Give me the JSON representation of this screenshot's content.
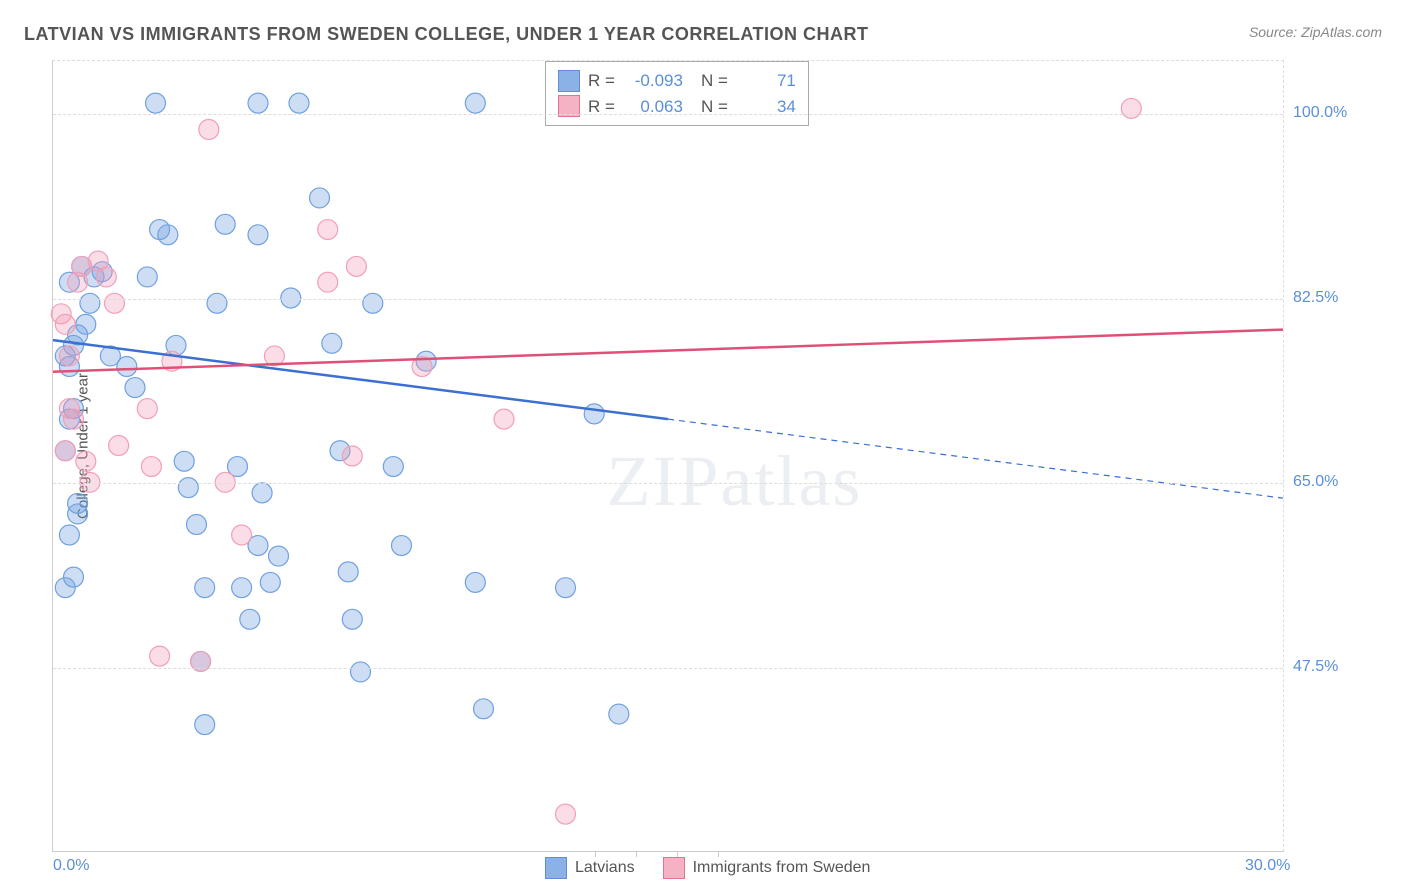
{
  "title": "LATVIAN VS IMMIGRANTS FROM SWEDEN COLLEGE, UNDER 1 YEAR CORRELATION CHART",
  "source": "Source: ZipAtlas.com",
  "watermark": "ZIPatlas",
  "ylabel": "College, Under 1 year",
  "chart": {
    "type": "scatter-regression",
    "background_color": "#ffffff",
    "grid_color": "#dddddd",
    "axis_color": "#cccccc",
    "text_color": "#555555",
    "tick_label_color": "#5b8fd6",
    "xlim": [
      0,
      30
    ],
    "ylim": [
      30,
      105
    ],
    "xticks": [
      0,
      30
    ],
    "xtick_labels": [
      "0.0%",
      "30.0%"
    ],
    "xtick_minor_positions": [
      13.2,
      14.2,
      15.2,
      16.2
    ],
    "yticks": [
      47.5,
      65.0,
      82.5,
      100.0
    ],
    "ytick_labels": [
      "47.5%",
      "65.0%",
      "82.5%",
      "100.0%"
    ],
    "marker_radius": 10,
    "marker_fill_opacity": 0.35,
    "marker_stroke_width": 1.2,
    "line_width": 2.5,
    "series": [
      {
        "name": "Latvians",
        "color": "#6fa0e0",
        "line_color": "#3b6fd1",
        "R": "-0.093",
        "N": "71",
        "regression": {
          "x1": 0,
          "y1": 78.5,
          "x2_solid": 15,
          "y2_solid": 71.0,
          "x2_dash": 30,
          "y2_dash": 63.5
        },
        "points": [
          [
            0.3,
            77
          ],
          [
            0.4,
            76
          ],
          [
            0.5,
            78
          ],
          [
            0.6,
            79
          ],
          [
            0.5,
            72
          ],
          [
            0.4,
            71
          ],
          [
            0.3,
            68
          ],
          [
            0.8,
            80
          ],
          [
            0.9,
            82
          ],
          [
            1.0,
            84.5
          ],
          [
            1.2,
            85
          ],
          [
            0.7,
            85.5
          ],
          [
            0.4,
            84
          ],
          [
            0.6,
            63
          ],
          [
            0.6,
            62
          ],
          [
            0.4,
            60
          ],
          [
            0.5,
            56
          ],
          [
            0.3,
            55
          ],
          [
            1.4,
            77
          ],
          [
            1.8,
            76
          ],
          [
            2.0,
            74
          ],
          [
            2.3,
            84.5
          ],
          [
            2.5,
            101
          ],
          [
            2.6,
            89
          ],
          [
            2.8,
            88.5
          ],
          [
            3.0,
            78
          ],
          [
            3.2,
            67
          ],
          [
            3.3,
            64.5
          ],
          [
            3.5,
            61
          ],
          [
            3.7,
            55
          ],
          [
            3.7,
            42
          ],
          [
            3.6,
            48
          ],
          [
            4.0,
            82
          ],
          [
            4.2,
            89.5
          ],
          [
            4.5,
            66.5
          ],
          [
            4.6,
            55
          ],
          [
            4.8,
            52
          ],
          [
            5.0,
            59
          ],
          [
            5.0,
            101
          ],
          [
            5.0,
            88.5
          ],
          [
            5.1,
            64
          ],
          [
            5.3,
            55.5
          ],
          [
            5.5,
            58
          ],
          [
            5.8,
            82.5
          ],
          [
            6.0,
            101
          ],
          [
            6.5,
            92
          ],
          [
            6.8,
            78.2
          ],
          [
            7.0,
            68
          ],
          [
            7.2,
            56.5
          ],
          [
            7.3,
            52
          ],
          [
            7.5,
            47
          ],
          [
            7.8,
            82
          ],
          [
            8.3,
            66.5
          ],
          [
            8.5,
            59
          ],
          [
            9.1,
            76.5
          ],
          [
            10.3,
            101
          ],
          [
            10.3,
            55.5
          ],
          [
            10.5,
            43.5
          ],
          [
            12.5,
            55
          ],
          [
            13.2,
            71.5
          ],
          [
            13.8,
            43
          ]
        ]
      },
      {
        "name": "Immigrants from Sweden",
        "color": "#f29fb6",
        "line_color": "#e05076",
        "R": "0.063",
        "N": "34",
        "regression": {
          "x1": 0,
          "y1": 75.5,
          "x2_solid": 30,
          "y2_solid": 79.5
        },
        "points": [
          [
            0.2,
            81
          ],
          [
            0.3,
            80
          ],
          [
            0.4,
            72
          ],
          [
            0.5,
            71
          ],
          [
            0.3,
            68
          ],
          [
            0.6,
            84
          ],
          [
            0.7,
            85.5
          ],
          [
            0.8,
            67
          ],
          [
            0.9,
            65
          ],
          [
            0.4,
            77
          ],
          [
            1.1,
            86
          ],
          [
            1.3,
            84.5
          ],
          [
            1.5,
            82
          ],
          [
            1.6,
            68.5
          ],
          [
            2.3,
            72
          ],
          [
            2.4,
            66.5
          ],
          [
            2.6,
            48.5
          ],
          [
            2.9,
            76.5
          ],
          [
            3.6,
            48
          ],
          [
            3.8,
            98.5
          ],
          [
            4.2,
            65
          ],
          [
            4.6,
            60
          ],
          [
            5.4,
            77
          ],
          [
            6.7,
            84
          ],
          [
            6.7,
            89
          ],
          [
            7.3,
            67.5
          ],
          [
            7.4,
            85.5
          ],
          [
            9.0,
            76
          ],
          [
            11.0,
            71
          ],
          [
            12.5,
            33.5
          ],
          [
            26.3,
            100.5
          ]
        ]
      }
    ]
  },
  "legend": {
    "series1_label": "Latvians",
    "series2_label": "Immigrants from Sweden"
  },
  "stats_labels": {
    "R": "R =",
    "N": "N ="
  }
}
